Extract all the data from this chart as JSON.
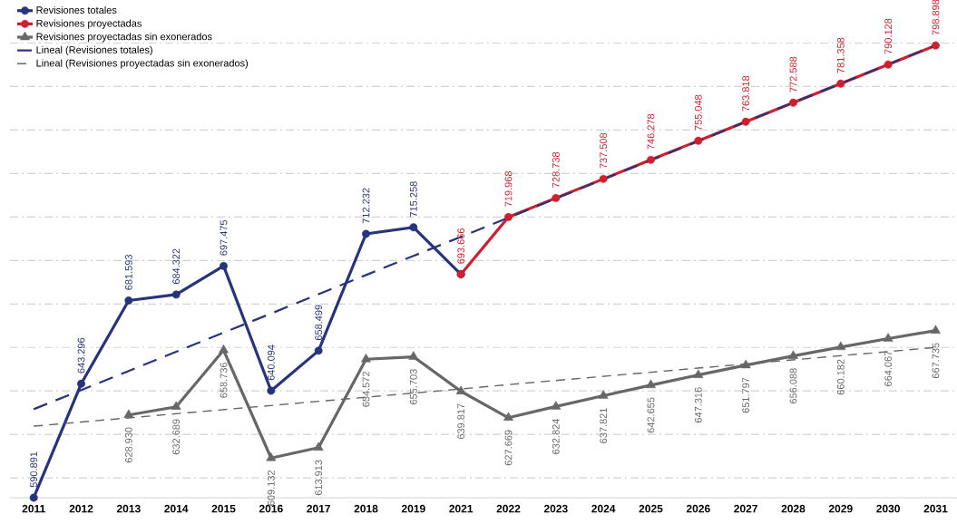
{
  "chart_data": {
    "type": "line",
    "categories": [
      "2011",
      "2012",
      "2013",
      "2014",
      "2015",
      "2016",
      "2017",
      "2018",
      "2019",
      "2021",
      "2022",
      "2023",
      "2024",
      "2025",
      "2026",
      "2027",
      "2028",
      "2029",
      "2030",
      "2031"
    ],
    "series": [
      {
        "name": "Revisiones totales",
        "color": "#27347c",
        "marker": "circle",
        "line_style": "solid",
        "values": [
          590.891,
          643.296,
          681.593,
          684.322,
          697.475,
          640.094,
          658.499,
          712.232,
          715.258,
          693.666,
          null,
          null,
          null,
          null,
          null,
          null,
          null,
          null,
          null,
          null
        ],
        "value_labels": [
          "590.891",
          "643.296",
          "681.593",
          "684.322",
          "697.475",
          "640.094",
          "658.499",
          "712.232",
          "715.258",
          null,
          null,
          null,
          null,
          null,
          null,
          null,
          null,
          null,
          null,
          null
        ]
      },
      {
        "name": "Revisiones proyectadas",
        "color": "#cf1f2e",
        "marker": "circle",
        "line_style": "solid",
        "values": [
          null,
          null,
          null,
          null,
          null,
          null,
          null,
          null,
          null,
          693.666,
          719.968,
          728.738,
          737.508,
          746.278,
          755.048,
          763.818,
          772.588,
          781.358,
          790.128,
          798.898
        ],
        "value_labels": [
          null,
          null,
          null,
          null,
          null,
          null,
          null,
          null,
          null,
          "693.666",
          "719.968",
          "728.738",
          "737.508",
          "746.278",
          "755.048",
          "763.818",
          "772.588",
          "781.358",
          "790.128",
          "798.898"
        ]
      },
      {
        "name": "Revisiones proyectadas sin exonerados",
        "color": "#676767",
        "marker": "triangle",
        "line_style": "solid",
        "values": [
          null,
          null,
          628.93,
          632.689,
          658.736,
          609.132,
          613.913,
          654.572,
          655.703,
          639.817,
          627.669,
          632.824,
          637.821,
          642.655,
          647.316,
          651.797,
          656.088,
          660.182,
          664.067,
          667.735
        ],
        "value_labels": [
          null,
          null,
          "628.930",
          "632.689",
          "658.736",
          "609.132",
          "613.913",
          "654.572",
          "655.703",
          "639.817",
          "627.669",
          "632.824",
          "637.821",
          "642.655",
          "647.316",
          "651.797",
          "656.088",
          "660.182",
          "664.067",
          "667.735"
        ]
      },
      {
        "name": "Lineal (Revisiones totales)",
        "color": "#27347c",
        "marker": "none",
        "line_style": "dashed",
        "values": [
          631.6,
          640.4,
          649.2,
          658.0,
          666.8,
          675.6,
          684.5,
          693.3,
          702.1,
          710.9,
          719.7,
          728.5,
          737.3,
          746.1,
          754.9,
          763.8,
          772.6,
          781.4,
          790.2,
          799.0
        ]
      },
      {
        "name": "Lineal (Revisiones proyectadas sin exonerados)",
        "color": "#676767",
        "marker": "none",
        "line_style": "dashed",
        "values": [
          623.8,
          625.7,
          627.6,
          629.5,
          631.4,
          633.3,
          635.2,
          637.1,
          639.0,
          640.9,
          642.9,
          644.8,
          646.7,
          648.6,
          650.5,
          652.4,
          654.3,
          656.2,
          658.1,
          660.0
        ]
      }
    ],
    "tick_labels": "x",
    "grid": "y",
    "legend": "top left"
  }
}
